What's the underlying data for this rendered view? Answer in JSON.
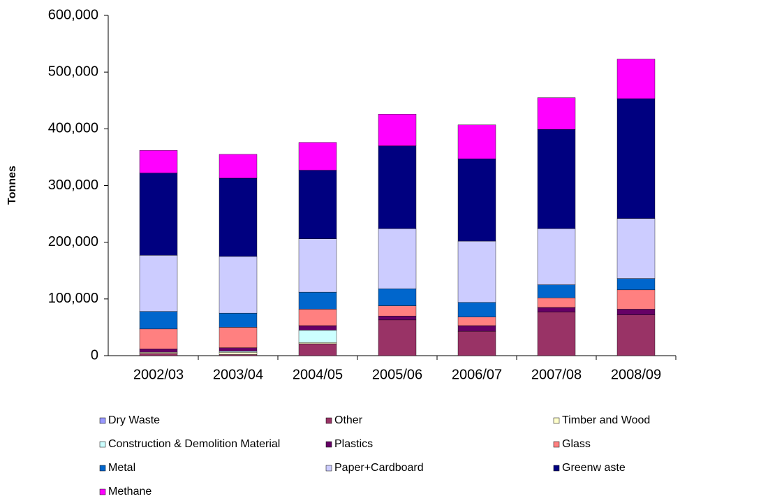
{
  "chart_data": {
    "type": "stacked_bar",
    "y_label": "Tonnes",
    "categories": [
      "2002/03",
      "2003/04",
      "2004/05",
      "2005/06",
      "2006/07",
      "2007/08",
      "2008/09"
    ],
    "series": [
      {
        "name": "Dry Waste",
        "color": "#9999ff",
        "values": [
          0,
          0,
          0,
          0,
          0,
          0,
          0
        ]
      },
      {
        "name": "Other",
        "color": "#993366",
        "values": [
          4000,
          2000,
          21000,
          63000,
          43000,
          77000,
          72000
        ]
      },
      {
        "name": "Timber and Wood",
        "color": "#ffffcc",
        "values": [
          2000,
          4000,
          2000,
          0,
          0,
          0,
          0
        ]
      },
      {
        "name": "Construction & Demolition Material",
        "color": "#ccffff",
        "values": [
          0,
          2000,
          22000,
          0,
          0,
          0,
          0
        ]
      },
      {
        "name": "Plastics",
        "color": "#660066",
        "values": [
          6000,
          6000,
          8000,
          7000,
          10000,
          8000,
          10000
        ]
      },
      {
        "name": "Glass",
        "color": "#ff8080",
        "values": [
          35000,
          36000,
          29000,
          18000,
          15000,
          17000,
          34000
        ]
      },
      {
        "name": "Metal",
        "color": "#0066cc",
        "values": [
          31000,
          25000,
          30000,
          30000,
          26000,
          23000,
          20000
        ]
      },
      {
        "name": "Paper+Cardboard",
        "color": "#ccccff",
        "values": [
          99000,
          100000,
          94000,
          106000,
          108000,
          99000,
          106000
        ]
      },
      {
        "name": "Greenw aste",
        "color": "#000080",
        "values": [
          145000,
          138000,
          121000,
          146000,
          145000,
          175000,
          211000
        ]
      },
      {
        "name": "Methane",
        "color": "#ff00ff",
        "values": [
          40000,
          42000,
          49000,
          56000,
          60000,
          56000,
          70000
        ]
      }
    ],
    "ylim": [
      0,
      600000
    ],
    "yticks": [
      0,
      {
        "value": 100000,
        "label": "100,000"
      },
      {
        "value": 200000,
        "label": "200,000"
      },
      {
        "value": 300000,
        "label": "300,000"
      },
      {
        "value": 400000,
        "label": "400,000"
      },
      {
        "value": 500000,
        "label": "500,000"
      },
      {
        "value": 600000,
        "label": "600,000"
      }
    ]
  }
}
